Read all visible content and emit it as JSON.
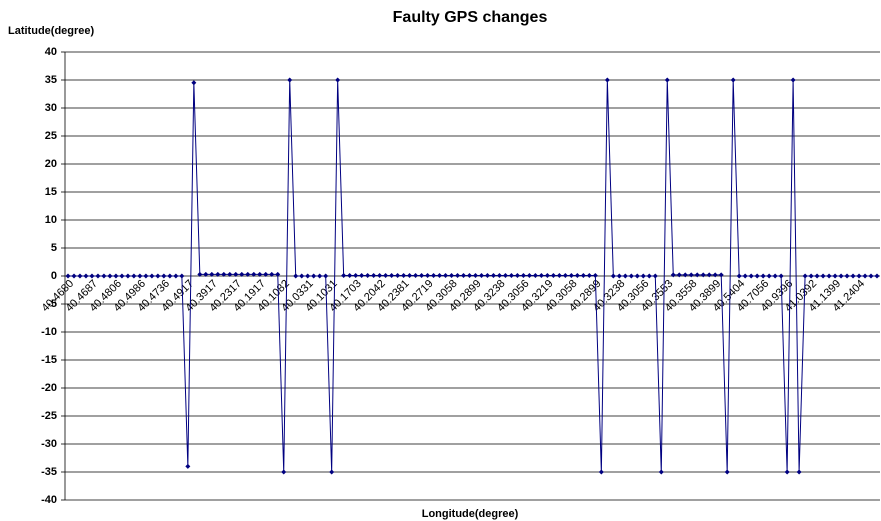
{
  "chart_data": {
    "type": "line",
    "title": "Faulty GPS changes",
    "y_label": "Latitude(degree)",
    "x_label": "Longitude(degree)",
    "categories": [
      "40.4680",
      null,
      null,
      null,
      "40.4687",
      null,
      null,
      null,
      "40.4806",
      null,
      null,
      null,
      "40.4986",
      null,
      null,
      null,
      "40.4736",
      null,
      null,
      null,
      "40.4917",
      null,
      null,
      null,
      "40.3917",
      null,
      null,
      null,
      "40.2317",
      null,
      null,
      null,
      "40.1917",
      null,
      null,
      null,
      "40.1082",
      null,
      null,
      null,
      "40.0331",
      null,
      null,
      null,
      "40.1031",
      null,
      null,
      null,
      "40.1703",
      null,
      null,
      null,
      "40.2042",
      null,
      null,
      null,
      "40.2381",
      null,
      null,
      null,
      "40.2719",
      null,
      null,
      null,
      "40.3058",
      null,
      null,
      null,
      "40.2899",
      null,
      null,
      null,
      "40.3238",
      null,
      null,
      null,
      "40.3056",
      null,
      null,
      null,
      "40.3219",
      null,
      null,
      null,
      "40.3058",
      null,
      null,
      null,
      "40.2899",
      null,
      null,
      null,
      "40.3238",
      null,
      null,
      null,
      "40.3056",
      null,
      null,
      null,
      "40.3553",
      null,
      null,
      null,
      "40.3558",
      null,
      null,
      null,
      "40.3899",
      null,
      null,
      null,
      "40.5404",
      null,
      null,
      null,
      "40.7056",
      null,
      null,
      null,
      "40.9396",
      null,
      null,
      null,
      "41.0392",
      null,
      null,
      null,
      "41.1399",
      null,
      null,
      null,
      "41.2404",
      null,
      null,
      null
    ],
    "series": [
      {
        "color": "#000080",
        "values": [
          0,
          0,
          0,
          0,
          0,
          0,
          0,
          0,
          0,
          0,
          0,
          0,
          0,
          0,
          0,
          0,
          0,
          0,
          0,
          0,
          -34,
          34.5,
          0.3,
          0.3,
          0.3,
          0.3,
          0.3,
          0.3,
          0.3,
          0.3,
          0.3,
          0.3,
          0.3,
          0.3,
          0.3,
          0.3,
          -35,
          35,
          0,
          0,
          0,
          0,
          0,
          0,
          -35,
          35,
          0.1,
          0.1,
          0.1,
          0.1,
          0.1,
          0.1,
          0.1,
          0.1,
          0.1,
          0.1,
          0.1,
          0.1,
          0.1,
          0.1,
          0.1,
          0.1,
          0.1,
          0.1,
          0.1,
          0.1,
          0.1,
          0.1,
          0.1,
          0.1,
          0.1,
          0.1,
          0.1,
          0.1,
          0.1,
          0.1,
          0.1,
          0.1,
          0.1,
          0.1,
          0.1,
          0.1,
          0.1,
          0.1,
          0.1,
          0.1,
          0.1,
          0.1,
          0.1,
          -35,
          35,
          0,
          0,
          0,
          0,
          0,
          0,
          0,
          0,
          -35,
          35,
          0.2,
          0.2,
          0.2,
          0.2,
          0.2,
          0.2,
          0.2,
          0.2,
          0.2,
          -35,
          35,
          0,
          0,
          0,
          0,
          0,
          0,
          0,
          0,
          -35,
          35,
          -35,
          0,
          0,
          0,
          0,
          0,
          0,
          0,
          0,
          0,
          0,
          0,
          0,
          0
        ]
      }
    ],
    "ylim": [
      -40,
      40
    ],
    "yticks": [
      -40,
      -35,
      -30,
      -25,
      -20,
      -15,
      -10,
      -5,
      0,
      5,
      10,
      15,
      20,
      25,
      30,
      35,
      40
    ],
    "grid": true
  }
}
